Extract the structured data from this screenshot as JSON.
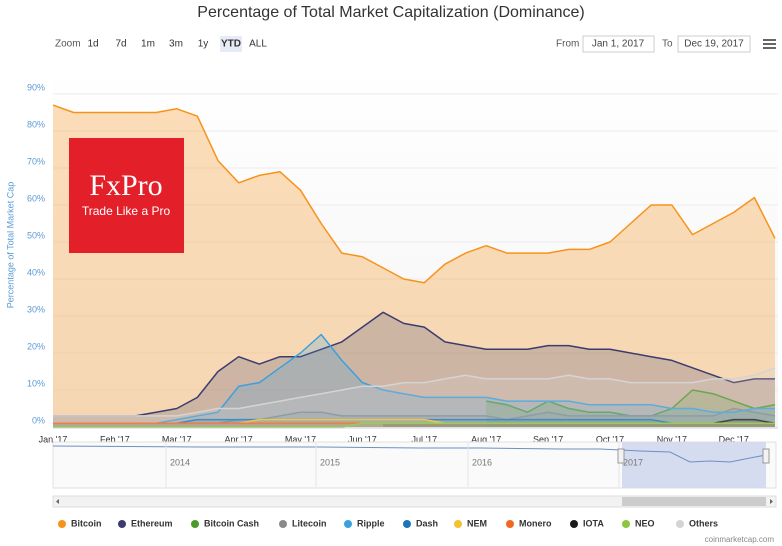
{
  "ui": {
    "zoom_label": "Zoom",
    "zoom_buttons": [
      "1d",
      "7d",
      "1m",
      "3m",
      "1y",
      "YTD",
      "ALL"
    ],
    "selected_zoom": "YTD",
    "from_label": "From",
    "from_value": "Jan 1, 2017",
    "to_label": "To",
    "to_value": "Dec 19, 2017",
    "logo_title": "FxPro",
    "logo_tagline": "Trade Like a Pro",
    "navigator_years": [
      "2014",
      "2015",
      "2016",
      "2017"
    ],
    "credit": "coinmarketcap.com"
  },
  "chart_data": {
    "type": "area",
    "title": "Percentage of Total Market Capitalization (Dominance)",
    "y_label": "Percentage of Total Market Cap",
    "categories": [
      "Jan '17",
      null,
      null,
      "Feb '17",
      null,
      null,
      "Mar '17",
      null,
      null,
      "Apr '17",
      null,
      null,
      "May '17",
      null,
      null,
      "Jun '17",
      null,
      null,
      "Jul '17",
      null,
      null,
      "Aug '17",
      null,
      null,
      "Sep '17",
      null,
      null,
      "Oct '17",
      null,
      null,
      "Nov '17",
      null,
      null,
      "Dec '17",
      null,
      null
    ],
    "ylim": [
      0,
      90
    ],
    "yticks": [
      {
        "value": 0,
        "label": "0%"
      },
      {
        "value": 10,
        "label": "10%"
      },
      {
        "value": 20,
        "label": "20%"
      },
      {
        "value": 30,
        "label": "30%"
      },
      {
        "value": 40,
        "label": "40%"
      },
      {
        "value": 50,
        "label": "50%"
      },
      {
        "value": 60,
        "label": "60%"
      },
      {
        "value": 70,
        "label": "70%"
      },
      {
        "value": 80,
        "label": "80%"
      },
      {
        "value": 90,
        "label": "90%"
      }
    ],
    "grid": true,
    "legend": "bottom",
    "series": [
      {
        "name": "Bitcoin",
        "color": "#f7931a",
        "values": [
          87,
          85,
          85,
          85,
          85,
          85,
          86,
          84,
          72,
          66,
          68,
          69,
          64,
          55,
          47,
          46,
          43,
          40,
          39,
          44,
          47,
          49,
          47,
          47,
          47,
          48,
          48,
          50,
          55,
          60,
          60,
          52,
          55,
          58,
          62,
          51
        ]
      },
      {
        "name": "Ethereum",
        "color": "#3c3c6e",
        "values": [
          3,
          3,
          3,
          3,
          3,
          4,
          5,
          8,
          15,
          19,
          17,
          19,
          19,
          21,
          23,
          27,
          31,
          28,
          27,
          23,
          22,
          21,
          21,
          21,
          22,
          22,
          21,
          21,
          20,
          19,
          18,
          16,
          14,
          12,
          13,
          13
        ]
      },
      {
        "name": "Bitcoin Cash",
        "color": "#4c9a2a",
        "values": [
          null,
          null,
          null,
          null,
          null,
          null,
          null,
          null,
          null,
          null,
          null,
          null,
          null,
          null,
          null,
          null,
          null,
          null,
          null,
          null,
          null,
          7,
          6,
          4,
          7,
          5,
          4,
          4,
          3,
          3,
          5,
          10,
          9,
          7,
          5,
          6
        ]
      },
      {
        "name": "Litecoin",
        "color": "#8a8a8a",
        "values": [
          1,
          1,
          1,
          1,
          1,
          1,
          1,
          1,
          1,
          2,
          2,
          3,
          4,
          4,
          3,
          3,
          3,
          3,
          3,
          3,
          3,
          3,
          2,
          3,
          4,
          3,
          3,
          3,
          3,
          3,
          3,
          3,
          3,
          5,
          4,
          3
        ]
      },
      {
        "name": "Ripple",
        "color": "#3aa0e0",
        "values": [
          1,
          1,
          1,
          1,
          1,
          1,
          2,
          3,
          4,
          11,
          12,
          16,
          20,
          25,
          18,
          12,
          10,
          9,
          8,
          8,
          8,
          8,
          7,
          7,
          7,
          7,
          6,
          6,
          6,
          6,
          5,
          5,
          4,
          4,
          5,
          5
        ]
      },
      {
        "name": "Dash",
        "color": "#1c75bc",
        "values": [
          1,
          1,
          1,
          1,
          1,
          1,
          1,
          2,
          2,
          2,
          2,
          2,
          2,
          2,
          2,
          2,
          2,
          2,
          2,
          2,
          2,
          2,
          2,
          2,
          2,
          2,
          2,
          2,
          2,
          2,
          1,
          1,
          1,
          1,
          1,
          1
        ]
      },
      {
        "name": "NEM",
        "color": "#f5c12e",
        "values": [
          1,
          1,
          1,
          1,
          1,
          1,
          1,
          1,
          1,
          1,
          2,
          2,
          2,
          2,
          2,
          2,
          2,
          2,
          2,
          1,
          1,
          1,
          1,
          1,
          1,
          1,
          1,
          1,
          1,
          1,
          1,
          1,
          1,
          1,
          1,
          1
        ]
      },
      {
        "name": "Monero",
        "color": "#f26822",
        "values": [
          1,
          1,
          1,
          1,
          1,
          1,
          1,
          1,
          1,
          1,
          1,
          1,
          1,
          1,
          1,
          1,
          1,
          1,
          1,
          1,
          1,
          1,
          1,
          1,
          1,
          1,
          1,
          1,
          1,
          1,
          1,
          1,
          1,
          1,
          1,
          1
        ]
      },
      {
        "name": "IOTA",
        "color": "#1a1a1a",
        "values": [
          null,
          null,
          null,
          null,
          null,
          null,
          null,
          null,
          null,
          null,
          null,
          null,
          null,
          null,
          null,
          null,
          1,
          1,
          1,
          1,
          1,
          1,
          1,
          1,
          1,
          1,
          1,
          1,
          1,
          1,
          1,
          1,
          1,
          2,
          2,
          1
        ]
      },
      {
        "name": "NEO",
        "color": "#8cc63e",
        "values": [
          0,
          0,
          0,
          0,
          0,
          0,
          0,
          0,
          0,
          0,
          0,
          0,
          0,
          0,
          0,
          1,
          1,
          1,
          1,
          1,
          1,
          1,
          1,
          1,
          1,
          1,
          1,
          1,
          1,
          1,
          1,
          1,
          1,
          1,
          1,
          1
        ]
      },
      {
        "name": "Others",
        "color": "#d4d4d4",
        "values": [
          3,
          3,
          3,
          3,
          3,
          3,
          3,
          4,
          5,
          5,
          6,
          7,
          8,
          9,
          10,
          11,
          11,
          12,
          12,
          13,
          14,
          13,
          13,
          13,
          13,
          14,
          13,
          13,
          12,
          12,
          12,
          12,
          13,
          13,
          14,
          16
        ]
      }
    ]
  }
}
